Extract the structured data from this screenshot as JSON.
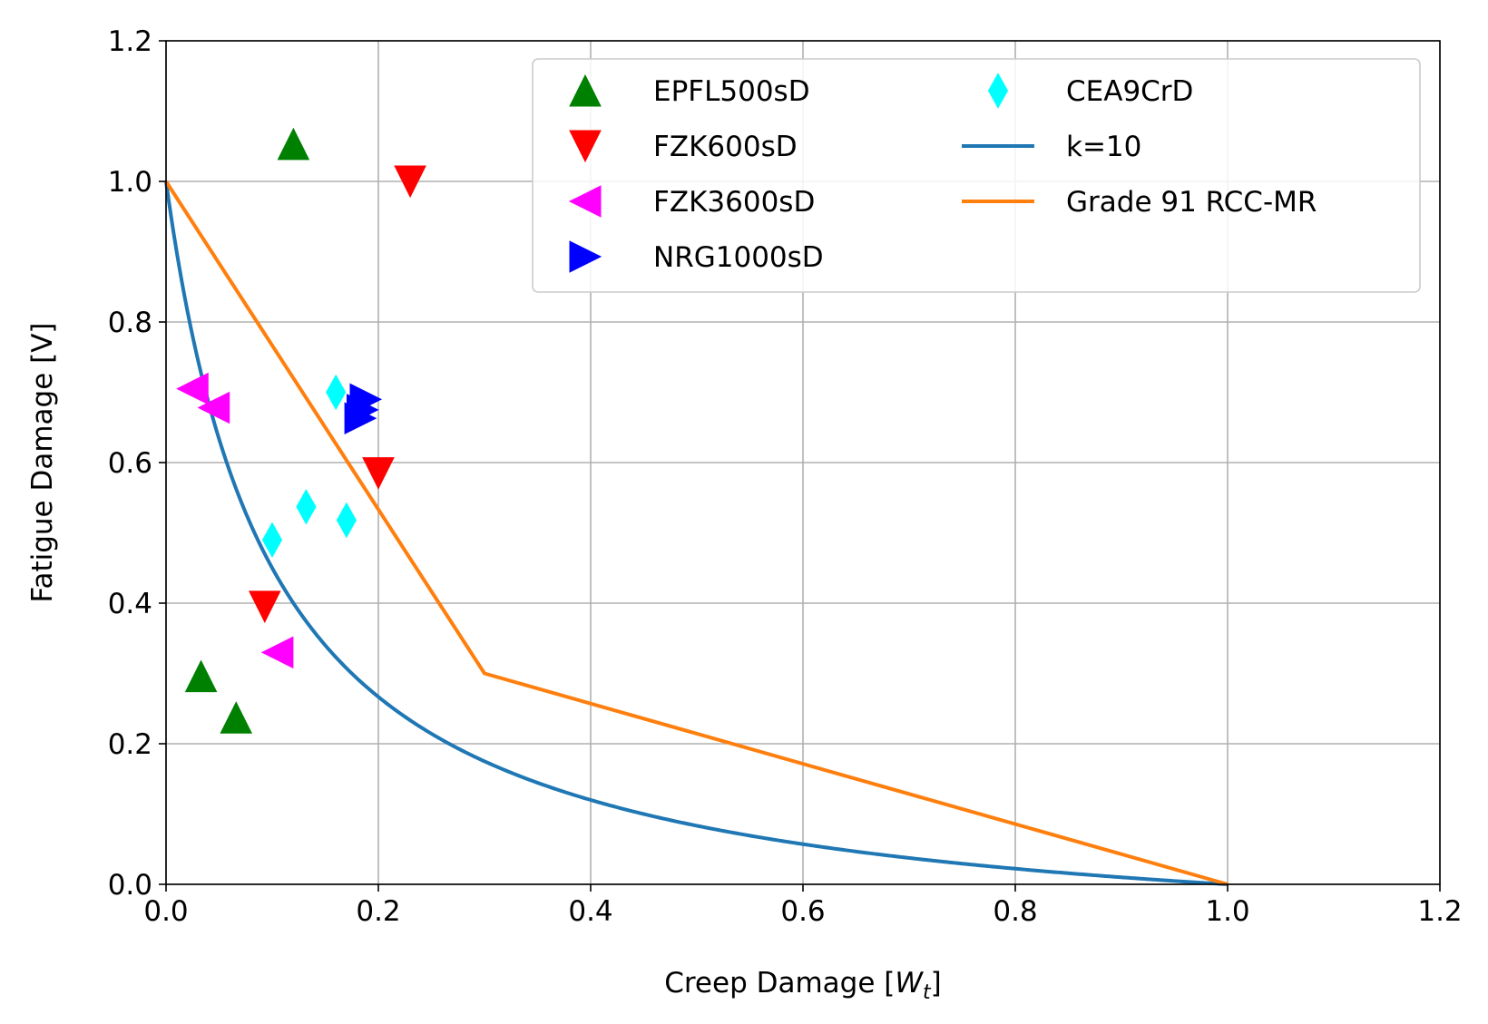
{
  "chart_data": {
    "type": "scatter",
    "title": "",
    "xlabel": "Creep Damage [W_t]",
    "xlabel_main": "Creep Damage [",
    "xlabel_var": "W",
    "xlabel_sub": "t",
    "xlabel_end": "]",
    "ylabel": "Fatigue Damage [V]",
    "xlim": [
      0,
      1.2
    ],
    "ylim": [
      0,
      1.2
    ],
    "xticks": [
      "0.0",
      "0.2",
      "0.4",
      "0.6",
      "0.8",
      "1.0",
      "1.2"
    ],
    "yticks": [
      "0.0",
      "0.2",
      "0.4",
      "0.6",
      "0.8",
      "1.0",
      "1.2"
    ],
    "grid": true,
    "legend_position": "top-right",
    "legend_columns": 2,
    "series": [
      {
        "name": "EPFL500sD",
        "kind": "scatter",
        "marker": "triangle-up",
        "color": "#008000",
        "points": [
          [
            0.12,
            1.053
          ],
          [
            0.033,
            0.296
          ],
          [
            0.066,
            0.237
          ]
        ]
      },
      {
        "name": "FZK600sD",
        "kind": "scatter",
        "marker": "triangle-down",
        "color": "#ff0000",
        "points": [
          [
            0.23,
            1.0
          ],
          [
            0.2,
            0.585
          ],
          [
            0.093,
            0.395
          ]
        ]
      },
      {
        "name": "FZK3600sD",
        "kind": "scatter",
        "marker": "triangle-left",
        "color": "#ff00ff",
        "points": [
          [
            0.025,
            0.705
          ],
          [
            0.045,
            0.678
          ],
          [
            0.105,
            0.33
          ]
        ]
      },
      {
        "name": "NRG1000sD",
        "kind": "scatter",
        "marker": "triangle-right",
        "color": "#0000ff",
        "points": [
          [
            0.188,
            0.69
          ],
          [
            0.185,
            0.675
          ],
          [
            0.183,
            0.663
          ]
        ]
      },
      {
        "name": "CEA9CrD",
        "kind": "scatter",
        "marker": "thin-diamond",
        "color": "#00ffff",
        "points": [
          [
            0.16,
            0.7
          ],
          [
            0.132,
            0.537
          ],
          [
            0.17,
            0.518
          ],
          [
            0.1,
            0.49
          ]
        ]
      },
      {
        "name": "k=10",
        "kind": "line",
        "color": "#1f77b4",
        "formula": "y=(1-x)/(1+10x)"
      },
      {
        "name": "Grade 91 RCC-MR",
        "kind": "line",
        "color": "#ff7f0e",
        "points": [
          [
            0,
            1.0
          ],
          [
            0.3,
            0.3
          ],
          [
            1.0,
            0.0
          ]
        ]
      }
    ]
  }
}
